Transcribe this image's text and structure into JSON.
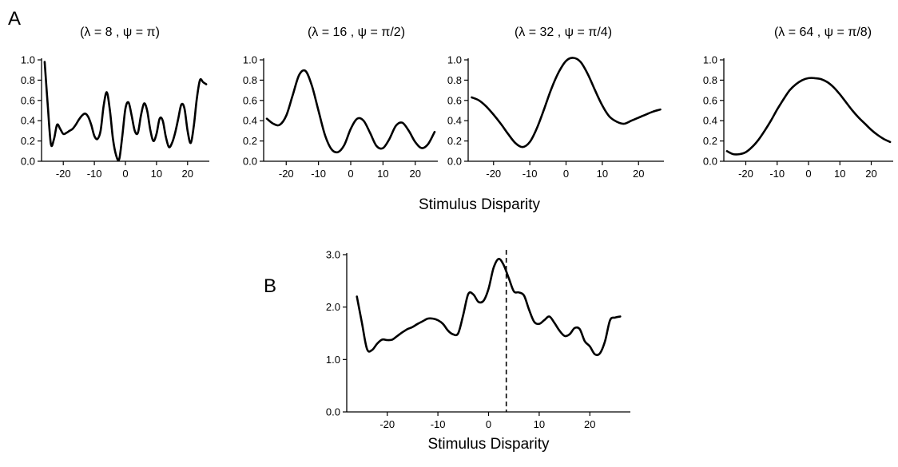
{
  "figure": {
    "panel_a_letter": "A",
    "panel_b_letter": "B",
    "panel_a_xlabel": "Stimulus Disparity",
    "panel_b_xlabel": "Stimulus Disparity"
  },
  "chart_data": [
    {
      "type": "line",
      "panel": "A",
      "title": "(λ = 8 , ψ = π)",
      "xlabel": "",
      "ylabel": "",
      "xlim": [
        -27,
        27
      ],
      "ylim": [
        0,
        1.0
      ],
      "xticks": [
        -20,
        -10,
        0,
        10,
        20
      ],
      "xtick_labels": [
        "-20",
        "-10",
        "0",
        "10",
        "20"
      ],
      "yticks": [
        0,
        0.2,
        0.4,
        0.6,
        0.8,
        1.0
      ],
      "ytick_labels": [
        "0.0",
        "0.2",
        "0.4",
        "0.6",
        "0.8",
        "1.0"
      ],
      "grid": false,
      "series": [
        {
          "x": [
            -26,
            -25,
            -24,
            -23,
            -22,
            -21,
            -20,
            -19,
            -18,
            -17,
            -16,
            -15,
            -14,
            -13,
            -12,
            -11,
            -10,
            -9,
            -8,
            -7,
            -6,
            -5,
            -4,
            -3,
            -2,
            -1,
            0,
            1,
            2,
            3,
            4,
            5,
            6,
            7,
            8,
            9,
            10,
            11,
            12,
            13,
            14,
            15,
            16,
            17,
            18,
            19,
            20,
            21,
            22,
            23,
            24,
            25,
            26
          ],
          "y": [
            0.98,
            0.55,
            0.17,
            0.22,
            0.36,
            0.32,
            0.27,
            0.28,
            0.3,
            0.32,
            0.36,
            0.41,
            0.45,
            0.47,
            0.44,
            0.36,
            0.25,
            0.22,
            0.3,
            0.55,
            0.68,
            0.5,
            0.22,
            0.06,
            0.02,
            0.25,
            0.52,
            0.58,
            0.45,
            0.3,
            0.28,
            0.45,
            0.57,
            0.5,
            0.31,
            0.2,
            0.27,
            0.42,
            0.4,
            0.24,
            0.14,
            0.18,
            0.28,
            0.42,
            0.56,
            0.52,
            0.3,
            0.18,
            0.35,
            0.62,
            0.8,
            0.78,
            0.76
          ]
        }
      ]
    },
    {
      "type": "line",
      "panel": "A",
      "title": "(λ = 16 , ψ = π/2)",
      "xlabel": "",
      "ylabel": "",
      "xlim": [
        -27,
        27
      ],
      "ylim": [
        0,
        1.0
      ],
      "xticks": [
        -20,
        -10,
        0,
        10,
        20
      ],
      "xtick_labels": [
        "-20",
        "-10",
        "0",
        "10",
        "20"
      ],
      "yticks": [
        0,
        0.2,
        0.4,
        0.6,
        0.8,
        1.0
      ],
      "ytick_labels": [
        "0.0",
        "0.2",
        "0.4",
        "0.6",
        "0.8",
        "1.0"
      ],
      "grid": false,
      "series": [
        {
          "x": [
            -26,
            -24,
            -22,
            -20,
            -18,
            -16,
            -14,
            -12,
            -10,
            -8,
            -6,
            -4,
            -2,
            0,
            2,
            4,
            6,
            8,
            10,
            12,
            14,
            16,
            18,
            20,
            22,
            24,
            26
          ],
          "y": [
            0.42,
            0.37,
            0.36,
            0.45,
            0.65,
            0.85,
            0.89,
            0.74,
            0.5,
            0.26,
            0.12,
            0.09,
            0.16,
            0.32,
            0.42,
            0.4,
            0.28,
            0.15,
            0.13,
            0.22,
            0.35,
            0.38,
            0.3,
            0.19,
            0.13,
            0.17,
            0.29
          ]
        }
      ]
    },
    {
      "type": "line",
      "panel": "A",
      "title": "(λ = 32 , ψ = π/4)",
      "xlabel": "",
      "ylabel": "",
      "xlim": [
        -27,
        27
      ],
      "ylim": [
        0,
        1.0
      ],
      "xticks": [
        -20,
        -10,
        0,
        10,
        20
      ],
      "xtick_labels": [
        "-20",
        "-10",
        "0",
        "10",
        "20"
      ],
      "yticks": [
        0,
        0.2,
        0.4,
        0.6,
        0.8,
        1.0
      ],
      "ytick_labels": [
        "0.0",
        "0.2",
        "0.4",
        "0.6",
        "0.8",
        "1.0"
      ],
      "grid": false,
      "series": [
        {
          "x": [
            -26,
            -24,
            -22,
            -20,
            -18,
            -16,
            -14,
            -12,
            -10,
            -8,
            -6,
            -4,
            -2,
            0,
            2,
            4,
            6,
            8,
            10,
            12,
            14,
            16,
            18,
            20,
            22,
            24,
            26
          ],
          "y": [
            0.63,
            0.6,
            0.54,
            0.46,
            0.37,
            0.27,
            0.18,
            0.14,
            0.19,
            0.33,
            0.52,
            0.72,
            0.88,
            0.99,
            1.02,
            0.98,
            0.86,
            0.7,
            0.55,
            0.44,
            0.39,
            0.37,
            0.4,
            0.43,
            0.46,
            0.49,
            0.51
          ]
        }
      ]
    },
    {
      "type": "line",
      "panel": "A",
      "title": "(λ = 64 , ψ = π/8)",
      "xlabel": "",
      "ylabel": "",
      "xlim": [
        -27,
        27
      ],
      "ylim": [
        0,
        1.0
      ],
      "xticks": [
        -20,
        -10,
        0,
        10,
        20
      ],
      "xtick_labels": [
        "-20",
        "-10",
        "0",
        "10",
        "20"
      ],
      "yticks": [
        0,
        0.2,
        0.4,
        0.6,
        0.8,
        1.0
      ],
      "ytick_labels": [
        "0.0",
        "0.2",
        "0.4",
        "0.6",
        "0.8",
        "1.0"
      ],
      "grid": false,
      "series": [
        {
          "x": [
            -26,
            -24,
            -22,
            -20,
            -18,
            -16,
            -14,
            -12,
            -10,
            -8,
            -6,
            -4,
            -2,
            0,
            2,
            4,
            6,
            8,
            10,
            12,
            14,
            16,
            18,
            20,
            22,
            24,
            26
          ],
          "y": [
            0.1,
            0.07,
            0.07,
            0.09,
            0.14,
            0.21,
            0.3,
            0.4,
            0.51,
            0.61,
            0.7,
            0.76,
            0.8,
            0.82,
            0.82,
            0.81,
            0.78,
            0.73,
            0.66,
            0.58,
            0.5,
            0.43,
            0.37,
            0.31,
            0.26,
            0.22,
            0.19
          ]
        }
      ]
    },
    {
      "type": "line",
      "panel": "B",
      "title": "",
      "xlabel": "Stimulus Disparity",
      "ylabel": "",
      "xlim": [
        -28,
        28
      ],
      "ylim": [
        0,
        3.0
      ],
      "xticks": [
        -20,
        -10,
        0,
        10,
        20
      ],
      "xtick_labels": [
        "-20",
        "-10",
        "0",
        "10",
        "20"
      ],
      "yticks": [
        0,
        1.0,
        2.0,
        3.0
      ],
      "ytick_labels": [
        "0.0",
        "1.0",
        "2.0",
        "3.0"
      ],
      "grid": false,
      "marker_x": 3.5,
      "series": [
        {
          "x": [
            -26,
            -25,
            -24,
            -23,
            -22,
            -21,
            -20,
            -19,
            -18,
            -17,
            -16,
            -15,
            -14,
            -13,
            -12,
            -11,
            -10,
            -9,
            -8,
            -7,
            -6,
            -5,
            -4,
            -3,
            -2,
            -1,
            0,
            1,
            2,
            3,
            4,
            5,
            6,
            7,
            8,
            9,
            10,
            11,
            12,
            13,
            14,
            15,
            16,
            17,
            18,
            19,
            20,
            21,
            22,
            23,
            24,
            25,
            26
          ],
          "y": [
            2.2,
            1.7,
            1.2,
            1.18,
            1.3,
            1.38,
            1.37,
            1.38,
            1.45,
            1.52,
            1.58,
            1.62,
            1.68,
            1.73,
            1.78,
            1.78,
            1.75,
            1.68,
            1.55,
            1.48,
            1.5,
            1.85,
            2.25,
            2.24,
            2.1,
            2.12,
            2.35,
            2.75,
            2.92,
            2.8,
            2.55,
            2.3,
            2.28,
            2.22,
            1.95,
            1.72,
            1.68,
            1.75,
            1.82,
            1.7,
            1.55,
            1.45,
            1.48,
            1.6,
            1.58,
            1.35,
            1.25,
            1.1,
            1.12,
            1.35,
            1.75,
            1.8,
            1.82
          ]
        }
      ]
    }
  ]
}
